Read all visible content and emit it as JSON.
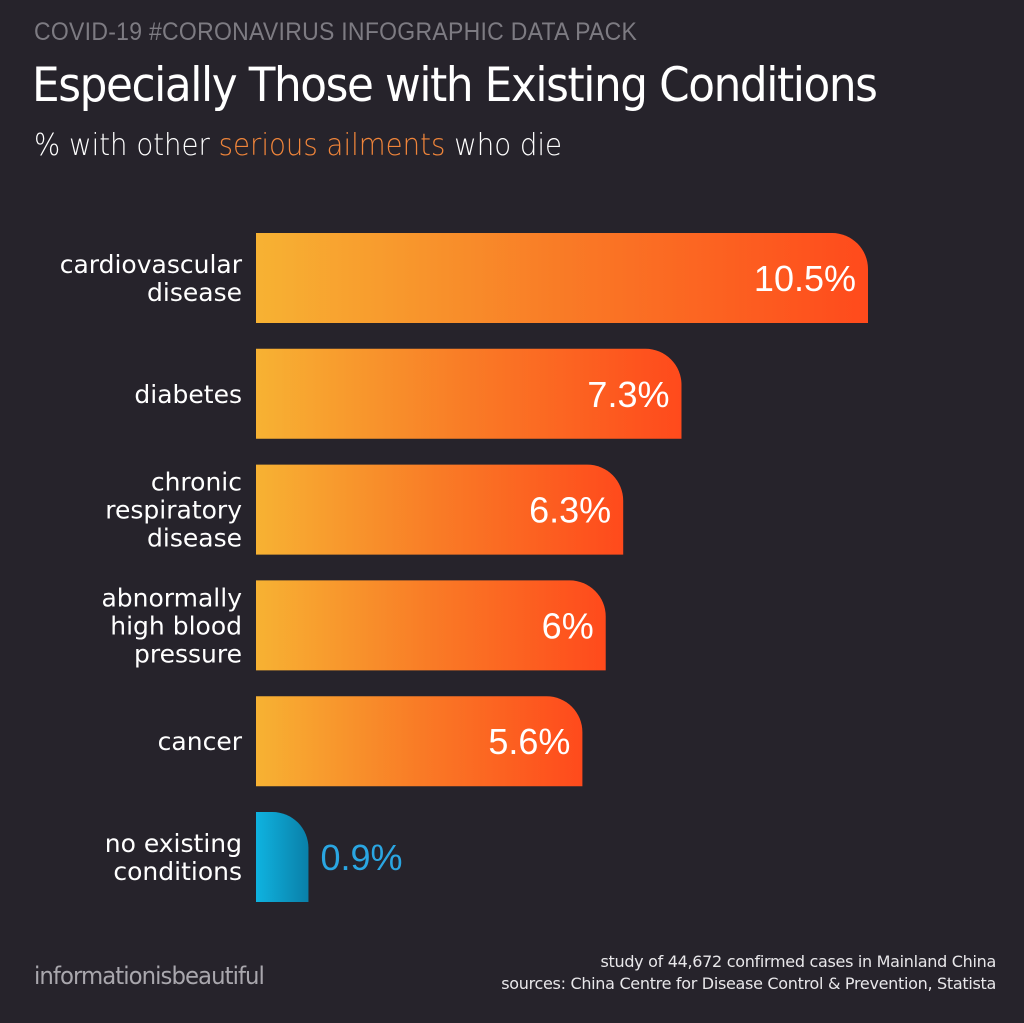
{
  "header": {
    "kicker": "COVID-19 #CORONAVIRUS INFOGRAPHIC DATA PACK",
    "title": "Especially Those with Existing Conditions",
    "subtitle_before": "% with other ",
    "subtitle_accent": "serious ailments",
    "subtitle_after": " who die"
  },
  "colors": {
    "background": "#26232b",
    "bar_gradient_start": "#f7b233",
    "bar_gradient_mid": "#f97b26",
    "bar_gradient_end": "#ff4a1c",
    "baseline_gradient_start": "#0fb3e0",
    "baseline_gradient_end": "#0a7fa8",
    "accent_text": "#f0853a",
    "baseline_value_text": "#2aa6e2"
  },
  "chart_data": {
    "type": "bar",
    "orientation": "horizontal",
    "title": "Especially Those with Existing Conditions",
    "subtitle": "% with other serious ailments who die",
    "xlabel": "",
    "ylabel": "",
    "unit": "%",
    "xlim": [
      0,
      10.5
    ],
    "grid": false,
    "legend": "none",
    "categories": [
      [
        "cardiovascular",
        "disease"
      ],
      [
        "diabetes"
      ],
      [
        "chronic",
        "respiratory",
        "disease"
      ],
      [
        "abnormally",
        "high blood",
        "pressure"
      ],
      [
        "cancer"
      ],
      [
        "no existing",
        "conditions"
      ]
    ],
    "values": [
      10.5,
      7.3,
      6.3,
      6,
      5.6,
      0.9
    ],
    "value_labels": [
      "10.5%",
      "7.3%",
      "6.3%",
      "6%",
      "5.6%",
      "0.9%"
    ],
    "highlight": [
      false,
      false,
      false,
      false,
      false,
      true
    ]
  },
  "footer": {
    "logo": "informationisbeautiful",
    "note": "study of 44,672 confirmed cases in Mainland China",
    "sources": "sources: China Centre for Disease Control & Prevention, Statista"
  }
}
